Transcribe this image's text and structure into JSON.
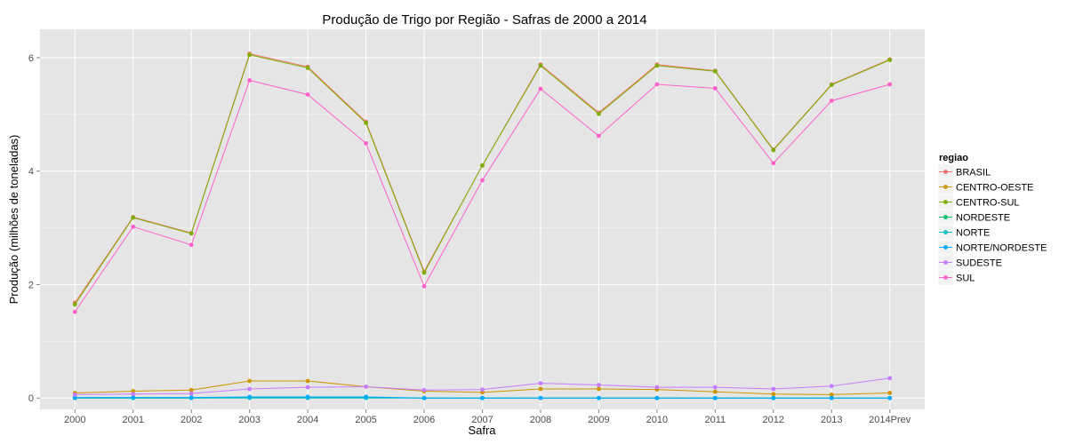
{
  "chart_data": {
    "type": "line",
    "title": "Produção de Trigo por Região - Safras de 2000 a 2014",
    "xlabel": "Safra",
    "ylabel": "Produção (milhões de toneladas)",
    "categories": [
      "2000",
      "2001",
      "2002",
      "2003",
      "2004",
      "2005",
      "2006",
      "2007",
      "2008",
      "2009",
      "2010",
      "2011",
      "2012",
      "2013",
      "2014Prev"
    ],
    "ylim": [
      -0.2,
      6.5
    ],
    "yticks": [
      0,
      2,
      4,
      6
    ],
    "grid": true,
    "legend_position": "right",
    "legend_title": "regiao",
    "series": [
      {
        "name": "BRASIL",
        "color": "#F8766D",
        "values": [
          1.68,
          3.19,
          2.91,
          6.07,
          5.84,
          4.87,
          2.23,
          4.1,
          5.88,
          5.03,
          5.88,
          5.77,
          4.38,
          5.53,
          5.97
        ]
      },
      {
        "name": "CENTRO-OESTE",
        "color": "#CD9600",
        "values": [
          0.09,
          0.12,
          0.14,
          0.3,
          0.3,
          0.2,
          0.12,
          0.1,
          0.16,
          0.16,
          0.15,
          0.11,
          0.07,
          0.06,
          0.09
        ]
      },
      {
        "name": "CENTRO-SUL",
        "color": "#7CAE00",
        "values": [
          1.65,
          3.18,
          2.9,
          6.05,
          5.82,
          4.85,
          2.21,
          4.1,
          5.86,
          5.01,
          5.86,
          5.76,
          4.37,
          5.52,
          5.96
        ]
      },
      {
        "name": "NORDESTE",
        "color": "#00BE67",
        "values": [
          0.0,
          0.0,
          0.0,
          0.01,
          0.01,
          0.01,
          0.0,
          0.0,
          0.0,
          0.0,
          0.0,
          0.0,
          0.0,
          0.0,
          0.0
        ]
      },
      {
        "name": "NORTE",
        "color": "#00BFC4",
        "values": [
          0.0,
          0.0,
          0.0,
          0.0,
          0.0,
          0.0,
          0.0,
          0.0,
          0.0,
          0.0,
          0.0,
          0.0,
          0.0,
          0.0,
          0.0
        ]
      },
      {
        "name": "NORTE/NORDESTE",
        "color": "#00A9FF",
        "values": [
          0.01,
          0.01,
          0.01,
          0.02,
          0.02,
          0.02,
          0.0,
          0.0,
          0.0,
          0.0,
          0.0,
          0.0,
          0.0,
          0.0,
          0.0
        ]
      },
      {
        "name": "SUDESTE",
        "color": "#C77CFF",
        "values": [
          0.06,
          0.07,
          0.08,
          0.16,
          0.19,
          0.2,
          0.14,
          0.15,
          0.26,
          0.23,
          0.19,
          0.19,
          0.16,
          0.21,
          0.35
        ]
      },
      {
        "name": "SUL",
        "color": "#FF61CC",
        "values": [
          1.52,
          3.02,
          2.7,
          5.6,
          5.35,
          4.49,
          1.97,
          3.84,
          5.45,
          4.62,
          5.53,
          5.46,
          4.14,
          5.24,
          5.53
        ]
      }
    ]
  }
}
